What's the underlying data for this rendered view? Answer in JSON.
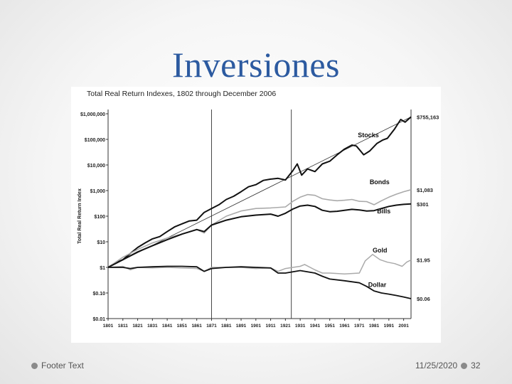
{
  "slide": {
    "title": "Inversiones",
    "footer_text": "Footer Text",
    "date": "11/25/2020",
    "page_number": "32"
  },
  "colors": {
    "title": "#2c5aa0",
    "stocks": "#111111",
    "bonds": "#aaaaaa",
    "bills": "#111111",
    "gold": "#aaaaaa",
    "dollar": "#111111",
    "trend": "#333333"
  },
  "chart_data": {
    "type": "line",
    "title": "Total Real Return Indexes, 1802 through December 2006",
    "ylabel": "Total Real Return Index",
    "xlabel": "",
    "y_scale": "log",
    "ylim": [
      0.01,
      1000000
    ],
    "xlim": [
      1801,
      2006
    ],
    "x_ticks": [
      1801,
      1811,
      1821,
      1831,
      1841,
      1851,
      1861,
      1871,
      1881,
      1891,
      1901,
      1911,
      1921,
      1931,
      1941,
      1951,
      1961,
      1971,
      1981,
      1991,
      2001
    ],
    "y_ticks": [
      {
        "value": 1000000,
        "label": "$1,000,000"
      },
      {
        "value": 100000,
        "label": "$100,000"
      },
      {
        "value": 10000,
        "label": "$10,000"
      },
      {
        "value": 1000,
        "label": "$1,000"
      },
      {
        "value": 100,
        "label": "$100"
      },
      {
        "value": 10,
        "label": "$10"
      },
      {
        "value": 1,
        "label": "$1"
      },
      {
        "value": 0.1,
        "label": "$0.10"
      },
      {
        "value": 0.01,
        "label": "$0.01"
      }
    ],
    "vertical_lines": [
      1871,
      1925
    ],
    "grid": false,
    "trend_line": {
      "x": [
        1801,
        2006
      ],
      "y": [
        1,
        755163
      ]
    },
    "series": [
      {
        "name": "Stocks",
        "end_label": "$755,163",
        "x": [
          1801,
          1806,
          1811,
          1816,
          1821,
          1826,
          1831,
          1836,
          1841,
          1846,
          1851,
          1856,
          1861,
          1866,
          1871,
          1876,
          1881,
          1886,
          1891,
          1896,
          1901,
          1906,
          1911,
          1916,
          1921,
          1926,
          1929,
          1932,
          1936,
          1941,
          1946,
          1951,
          1956,
          1961,
          1966,
          1969,
          1974,
          1978,
          1983,
          1987,
          1990,
          1995,
          1999,
          2002,
          2006
        ],
        "y": [
          1,
          1.5,
          2,
          3.5,
          6,
          9,
          13,
          16,
          25,
          38,
          50,
          65,
          70,
          140,
          200,
          280,
          450,
          600,
          900,
          1400,
          1700,
          2500,
          2800,
          3000,
          2600,
          6000,
          11000,
          4000,
          7000,
          5500,
          11000,
          14000,
          25000,
          42000,
          60000,
          55000,
          25000,
          35000,
          70000,
          95000,
          110000,
          260000,
          600000,
          470000,
          755163
        ]
      },
      {
        "name": "Bonds",
        "end_label": "$1,083",
        "x": [
          1801,
          1811,
          1821,
          1831,
          1841,
          1851,
          1861,
          1866,
          1871,
          1881,
          1891,
          1901,
          1911,
          1921,
          1926,
          1931,
          1936,
          1941,
          1946,
          1951,
          1956,
          1961,
          1966,
          1971,
          1976,
          1981,
          1986,
          1991,
          1996,
          2001,
          2006
        ],
        "y": [
          1,
          2.5,
          5,
          9,
          14,
          20,
          30,
          22,
          45,
          100,
          160,
          200,
          210,
          230,
          380,
          550,
          700,
          650,
          480,
          430,
          400,
          420,
          450,
          380,
          370,
          280,
          400,
          550,
          720,
          900,
          1083
        ]
      },
      {
        "name": "Bills",
        "end_label": "$301",
        "x": [
          1801,
          1811,
          1821,
          1831,
          1841,
          1851,
          1861,
          1866,
          1871,
          1881,
          1891,
          1901,
          1911,
          1916,
          1921,
          1926,
          1931,
          1936,
          1941,
          1946,
          1951,
          1956,
          1961,
          1966,
          1971,
          1976,
          1981,
          1986,
          1991,
          1996,
          2001,
          2006
        ],
        "y": [
          1,
          2,
          4,
          7,
          12,
          20,
          30,
          25,
          45,
          70,
          95,
          110,
          120,
          100,
          130,
          190,
          250,
          270,
          240,
          170,
          150,
          155,
          170,
          185,
          175,
          160,
          165,
          200,
          240,
          270,
          290,
          301
        ]
      },
      {
        "name": "Gold",
        "end_label": "$1.95",
        "x": [
          1801,
          1811,
          1816,
          1821,
          1831,
          1841,
          1851,
          1861,
          1866,
          1871,
          1881,
          1891,
          1901,
          1911,
          1916,
          1921,
          1926,
          1931,
          1934,
          1941,
          1946,
          1951,
          1961,
          1971,
          1975,
          1980,
          1985,
          1990,
          1995,
          2000,
          2003,
          2006
        ],
        "y": [
          1,
          1.1,
          0.8,
          1,
          0.95,
          1,
          0.95,
          0.9,
          0.7,
          1,
          1,
          1,
          0.9,
          0.95,
          0.7,
          0.9,
          1,
          1.1,
          1.3,
          0.8,
          0.6,
          0.6,
          0.55,
          0.6,
          1.8,
          3.2,
          2,
          1.6,
          1.4,
          1.1,
          1.6,
          1.95
        ]
      },
      {
        "name": "Dollar",
        "end_label": "$0.06",
        "x": [
          1801,
          1811,
          1816,
          1821,
          1831,
          1841,
          1851,
          1861,
          1866,
          1871,
          1881,
          1891,
          1901,
          1911,
          1916,
          1921,
          1931,
          1941,
          1946,
          1951,
          1961,
          1971,
          1976,
          1981,
          1986,
          1991,
          1996,
          2001,
          2006
        ],
        "y": [
          1,
          1,
          0.9,
          1,
          1.05,
          1.1,
          1.1,
          1.05,
          0.7,
          0.9,
          1,
          1.05,
          1,
          0.95,
          0.6,
          0.6,
          0.75,
          0.6,
          0.45,
          0.35,
          0.3,
          0.25,
          0.18,
          0.12,
          0.1,
          0.09,
          0.08,
          0.07,
          0.06
        ]
      }
    ],
    "inline_labels": [
      {
        "series": "Stocks",
        "text": "Stocks"
      },
      {
        "series": "Bonds",
        "text": "Bonds"
      },
      {
        "series": "Bills",
        "text": "Bills"
      },
      {
        "series": "Gold",
        "text": "Gold"
      },
      {
        "series": "Dollar",
        "text": "Dollar"
      }
    ]
  }
}
